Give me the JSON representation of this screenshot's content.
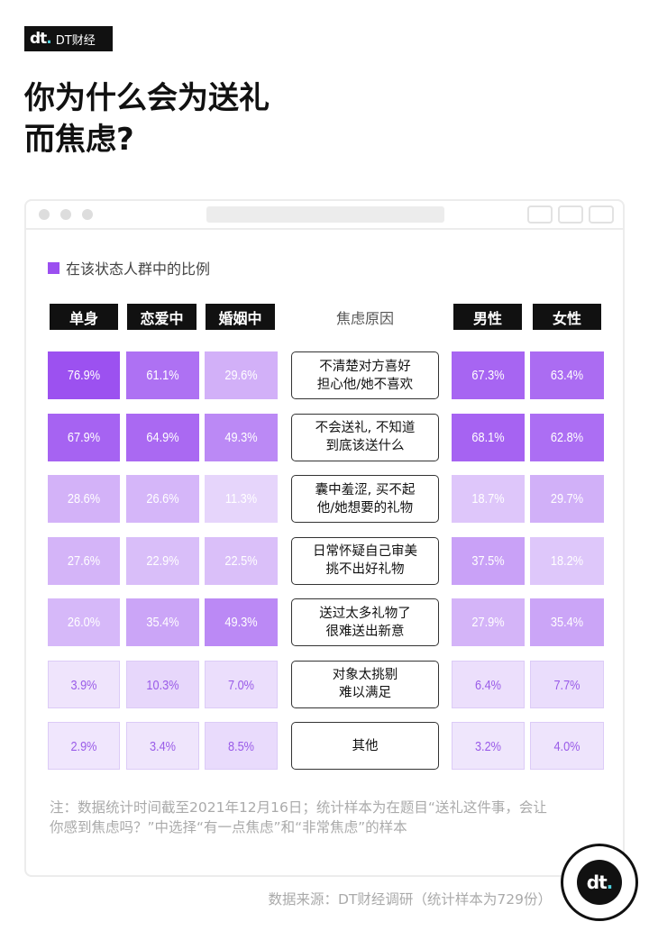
{
  "brand": {
    "logo_mark": "dt",
    "name": "DT财经"
  },
  "title_lines": [
    "你为什么会为送礼",
    "而焦虑?"
  ],
  "chart_data": {
    "type": "table",
    "title": "你为什么会为送礼而焦虑?",
    "legend": "在该状态人群中的比例",
    "colors": {
      "high": "#9b4ff0",
      "low": "#f3ecfd",
      "low_text": "#9a5ce8"
    },
    "left_columns": [
      "单身",
      "恋爱中",
      "婚姻中"
    ],
    "reason_header": "焦虑原因",
    "right_columns": [
      "男性",
      "女性"
    ],
    "rows": [
      {
        "reason": "不清楚对方喜好\n担心他/她不喜欢",
        "values": [
          76.9,
          61.1,
          29.6,
          67.3,
          63.4
        ]
      },
      {
        "reason": "不会送礼, 不知道\n到底该送什么",
        "values": [
          67.9,
          64.9,
          49.3,
          68.1,
          62.8
        ]
      },
      {
        "reason": "囊中羞涩, 买不起\n他/她想要的礼物",
        "values": [
          28.6,
          26.6,
          11.3,
          18.7,
          29.7
        ]
      },
      {
        "reason": "日常怀疑自己审美\n挑不出好礼物",
        "values": [
          27.6,
          22.9,
          22.5,
          37.5,
          18.2
        ]
      },
      {
        "reason": "送过太多礼物了\n很难送出新意",
        "values": [
          26.0,
          35.4,
          49.3,
          27.9,
          35.4
        ]
      },
      {
        "reason": "对象太挑剔\n难以满足",
        "values": [
          3.9,
          10.3,
          7.0,
          6.4,
          7.7
        ]
      },
      {
        "reason": "其他",
        "values": [
          2.9,
          3.4,
          8.5,
          3.2,
          4.0
        ]
      }
    ]
  },
  "note": "注：数据统计时间截至2021年12月16日；统计样本为在题目“送礼这件事，会让你感到焦虑吗？”中选择“有一点焦虑”和“非常焦虑”的样本",
  "source": "数据来源：DT财经调研（统计样本为729份）"
}
